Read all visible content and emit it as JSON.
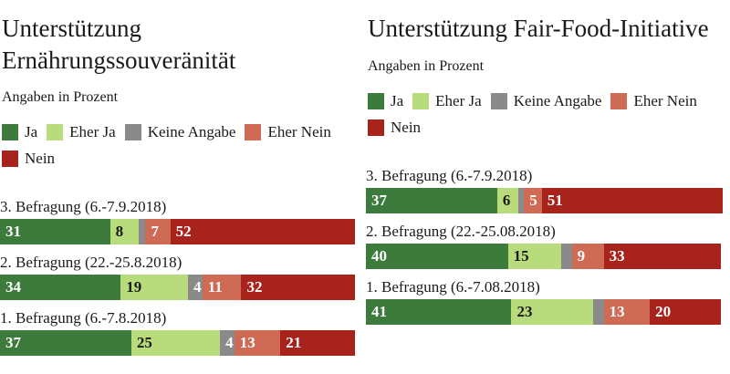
{
  "chart_data": [
    {
      "type": "bar",
      "stacked": true,
      "orientation": "horizontal",
      "title": "Unterstützung Ernährungssouveränität",
      "subtitle": "Angaben in Prozent",
      "xlim": [
        0,
        100
      ],
      "grid": false,
      "legend_position": "top",
      "categories": [
        "3. Befragung (6.-7.9.2018)",
        "2. Befragung (22.-25.8.2018)",
        "1. Befragung (6.-7.8.2018)"
      ],
      "series": [
        {
          "name": "Ja",
          "color": "#3c7b3c",
          "label_color": "#ffffff",
          "values": [
            31,
            34,
            37
          ],
          "value_labels": [
            "31",
            "34",
            "37"
          ]
        },
        {
          "name": "Eher Ja",
          "color": "#b8dc7c",
          "label_color": "#1a1a1a",
          "values": [
            8,
            19,
            25
          ],
          "value_labels": [
            "8",
            "19",
            "25"
          ]
        },
        {
          "name": "Keine Angabe",
          "color": "#8a8a8a",
          "label_color": "#ffffff",
          "values": [
            2,
            4,
            4
          ],
          "value_labels": [
            "",
            "4",
            "4"
          ]
        },
        {
          "name": "Eher Nein",
          "color": "#cf6a55",
          "label_color": "#ffffff",
          "values": [
            7,
            11,
            13
          ],
          "value_labels": [
            "7",
            "11",
            "13"
          ]
        },
        {
          "name": "Nein",
          "color": "#a8231c",
          "label_color": "#ffffff",
          "values": [
            52,
            32,
            21
          ],
          "value_labels": [
            "52",
            "32",
            "21"
          ]
        }
      ]
    },
    {
      "type": "bar",
      "stacked": true,
      "orientation": "horizontal",
      "title": "Unterstützung Fair-Food-Initiative",
      "subtitle": "Angaben in Prozent",
      "xlim": [
        0,
        100
      ],
      "grid": false,
      "legend_position": "top",
      "categories": [
        "3. Befragung (6.-7.9.2018)",
        "2. Befragung (22.-25.08.2018)",
        "1. Befragung (6.-7.08.2018)"
      ],
      "series": [
        {
          "name": "Ja",
          "color": "#3c7b3c",
          "label_color": "#ffffff",
          "values": [
            37,
            40,
            41
          ],
          "value_labels": [
            "37",
            "40",
            "41"
          ]
        },
        {
          "name": "Eher Ja",
          "color": "#b8dc7c",
          "label_color": "#1a1a1a",
          "values": [
            6,
            15,
            23
          ],
          "value_labels": [
            "6",
            "15",
            "23"
          ]
        },
        {
          "name": "Keine Angabe",
          "color": "#8a8a8a",
          "label_color": "#ffffff",
          "values": [
            1,
            3,
            3
          ],
          "value_labels": [
            "",
            "",
            ""
          ]
        },
        {
          "name": "Eher Nein",
          "color": "#cf6a55",
          "label_color": "#ffffff",
          "values": [
            5,
            9,
            13
          ],
          "value_labels": [
            "5",
            "9",
            "13"
          ]
        },
        {
          "name": "Nein",
          "color": "#a8231c",
          "label_color": "#ffffff",
          "values": [
            51,
            33,
            20
          ],
          "value_labels": [
            "51",
            "33",
            "20"
          ]
        }
      ]
    }
  ]
}
